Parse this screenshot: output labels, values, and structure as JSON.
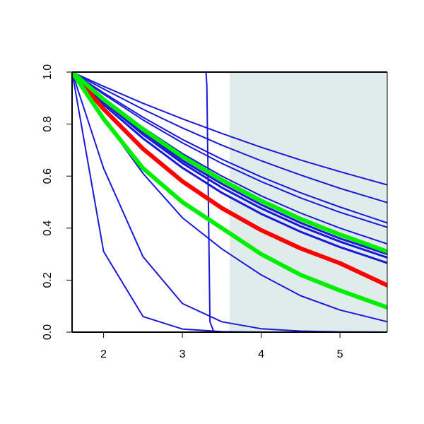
{
  "chart_data": {
    "type": "line",
    "title": "",
    "xlabel": "",
    "ylabel": "",
    "xlim": [
      1.6,
      5.6
    ],
    "ylim": [
      0.0,
      1.0
    ],
    "x_ticks": [
      2,
      3,
      4,
      5
    ],
    "x_tick_labels": [
      "2",
      "3",
      "4",
      "5"
    ],
    "y_ticks": [
      0.0,
      0.2,
      0.4,
      0.6,
      0.8,
      1.0
    ],
    "y_tick_labels": [
      "0.0",
      "0.2",
      "0.4",
      "0.6",
      "0.8",
      "1.0"
    ],
    "grid": false,
    "shaded_region": {
      "x_start": 3.6,
      "x_end": 5.6,
      "color": "#dfeceb"
    },
    "colors": {
      "blue": "#1a1ad6",
      "red": "#ff0000",
      "green": "#00ee00",
      "axis": "#000000"
    },
    "series": [
      {
        "color": "#1a1ad6",
        "width": 2,
        "x": [
          1.6,
          2.0,
          2.5,
          3.0,
          3.5,
          4.0,
          4.5,
          5.0,
          5.6
        ],
        "y": [
          1.0,
          0.31,
          0.06,
          0.012,
          0.002,
          0.0,
          0.0,
          0.0,
          0.0
        ]
      },
      {
        "color": "#1a1ad6",
        "width": 2,
        "x": [
          1.6,
          2.0,
          2.5,
          3.0,
          3.5,
          4.0,
          4.5,
          5.0,
          5.6
        ],
        "y": [
          1.0,
          0.63,
          0.29,
          0.11,
          0.04,
          0.013,
          0.004,
          0.001,
          0.0
        ]
      },
      {
        "color": "#1a1ad6",
        "width": 2,
        "x": [
          1.6,
          2.0,
          2.5,
          3.0,
          3.5,
          4.0,
          4.5,
          5.0,
          5.6
        ],
        "y": [
          1.0,
          0.82,
          0.61,
          0.44,
          0.32,
          0.22,
          0.14,
          0.085,
          0.04
        ]
      },
      {
        "color": "#1a1ad6",
        "width": 2,
        "x": [
          1.6,
          3.0,
          3.3,
          3.31,
          3.33,
          3.35,
          3.4,
          4.0,
          5.6
        ],
        "y": [
          1.0,
          1.0,
          1.0,
          0.95,
          0.5,
          0.04,
          0.0,
          0.0,
          0.0
        ]
      },
      {
        "color": "#1a1ad6",
        "width": 2,
        "x": [
          1.6,
          2.0,
          2.5,
          3.0,
          3.5,
          4.0,
          4.5,
          5.0,
          5.6
        ],
        "y": [
          1.0,
          0.915,
          0.816,
          0.728,
          0.649,
          0.579,
          0.516,
          0.461,
          0.403
        ]
      },
      {
        "color": "#1a1ad6",
        "width": 2,
        "x": [
          1.6,
          2.0,
          2.5,
          3.0,
          3.5,
          4.0,
          4.5,
          5.0,
          5.6
        ],
        "y": [
          1.0,
          0.935,
          0.857,
          0.785,
          0.719,
          0.659,
          0.604,
          0.553,
          0.498
        ]
      },
      {
        "color": "#1a1ad6",
        "width": 2,
        "x": [
          1.6,
          2.0,
          2.5,
          3.0,
          3.5,
          4.0,
          4.5,
          5.0,
          5.6
        ],
        "y": [
          1.0,
          0.945,
          0.88,
          0.82,
          0.764,
          0.711,
          0.662,
          0.617,
          0.566
        ]
      },
      {
        "color": "#1a1ad6",
        "width": 2,
        "x": [
          1.6,
          2.0,
          2.5,
          3.0,
          3.5,
          4.0,
          4.5,
          5.0,
          5.6
        ],
        "y": [
          1.0,
          0.92,
          0.826,
          0.741,
          0.665,
          0.597,
          0.536,
          0.481,
          0.42
        ]
      },
      {
        "color": "#1a1ad6",
        "width": 2,
        "x": [
          1.6,
          2.0,
          2.5,
          3.0,
          3.5,
          4.0,
          4.5,
          5.0,
          5.6
        ],
        "y": [
          1.0,
          0.9,
          0.787,
          0.687,
          0.6,
          0.524,
          0.458,
          0.4,
          0.339
        ]
      },
      {
        "color": "#1a1ad6",
        "width": 3,
        "x": [
          1.6,
          2.0,
          2.5,
          3.0,
          3.5,
          4.0,
          4.5,
          5.0,
          5.6
        ],
        "y": [
          1.0,
          0.89,
          0.77,
          0.66,
          0.57,
          0.49,
          0.42,
          0.36,
          0.3
        ]
      },
      {
        "color": "#1a1ad6",
        "width": 3,
        "x": [
          1.6,
          2.0,
          2.5,
          3.0,
          3.5,
          4.0,
          4.5,
          5.0,
          5.6
        ],
        "y": [
          1.0,
          0.885,
          0.76,
          0.65,
          0.556,
          0.476,
          0.407,
          0.348,
          0.287
        ]
      },
      {
        "color": "#1a1ad6",
        "width": 3,
        "x": [
          1.6,
          2.0,
          2.5,
          3.0,
          3.5,
          4.0,
          4.5,
          5.0,
          5.6
        ],
        "y": [
          1.0,
          0.875,
          0.745,
          0.632,
          0.536,
          0.455,
          0.386,
          0.327,
          0.266
        ]
      },
      {
        "color": "#ff0000",
        "width": 6,
        "x": [
          1.6,
          2.0,
          2.5,
          3.0,
          3.5,
          4.0,
          4.5,
          5.0,
          5.6
        ],
        "y": [
          1.0,
          0.858,
          0.705,
          0.58,
          0.477,
          0.392,
          0.322,
          0.265,
          0.18
        ]
      },
      {
        "color": "#00ee00",
        "width": 6,
        "x": [
          1.6,
          2.0,
          2.5,
          3.0,
          3.5,
          4.0,
          4.5,
          5.0,
          5.6
        ],
        "y": [
          1.0,
          0.895,
          0.78,
          0.675,
          0.585,
          0.505,
          0.435,
          0.375,
          0.31
        ]
      },
      {
        "color": "#00ee00",
        "width": 6,
        "x": [
          1.6,
          2.0,
          2.5,
          3.0,
          3.5,
          4.0,
          4.5,
          5.0,
          5.6
        ],
        "y": [
          1.0,
          0.82,
          0.63,
          0.5,
          0.4,
          0.3,
          0.22,
          0.16,
          0.095
        ]
      }
    ]
  }
}
